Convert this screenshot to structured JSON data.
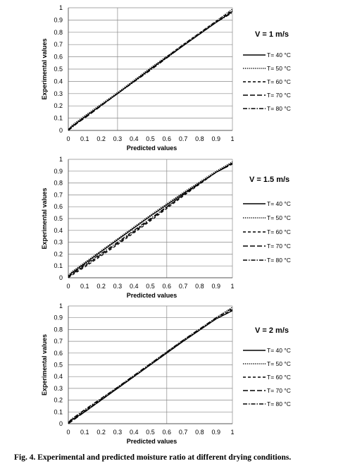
{
  "caption": "Fig. 4. Experimental and predicted moisture ratio at different drying conditions.",
  "chart_data": [
    {
      "type": "line",
      "condition_label": "V = 1 m/s",
      "xlabel": "Predicted values",
      "ylabel": "Experimental values",
      "xlim": [
        0,
        1
      ],
      "ylim": [
        0,
        1
      ],
      "xticks": [
        "0",
        "0.1",
        "0.2",
        "0.3",
        "0.4",
        "0.5",
        "0.6",
        "0.7",
        "0.8",
        "0.9",
        "1"
      ],
      "yticks": [
        "0",
        "0.1",
        "0.2",
        "0.3",
        "0.4",
        "0.5",
        "0.6",
        "0.7",
        "0.8",
        "0.9",
        "1"
      ],
      "grid": "horizontal",
      "vline_x": 0.3,
      "legend_position": "right",
      "series": [
        {
          "name": "T= 40 °C",
          "dash": "solid",
          "points": [
            [
              0,
              0.0
            ],
            [
              0.02,
              0.03
            ],
            [
              0.1,
              0.11
            ],
            [
              0.3,
              0.3
            ],
            [
              0.5,
              0.5
            ],
            [
              0.7,
              0.69
            ],
            [
              0.9,
              0.88
            ],
            [
              1.0,
              0.97
            ]
          ]
        },
        {
          "name": "T= 50 °C",
          "dash": "dotted",
          "points": [
            [
              0,
              0.0
            ],
            [
              0.02,
              0.04
            ],
            [
              0.1,
              0.12
            ],
            [
              0.3,
              0.31
            ],
            [
              0.5,
              0.51
            ],
            [
              0.7,
              0.7
            ],
            [
              0.9,
              0.89
            ],
            [
              1.0,
              0.99
            ]
          ]
        },
        {
          "name": "T= 60 °C",
          "dash": "dashed",
          "points": [
            [
              0,
              0.01
            ],
            [
              0.02,
              0.03
            ],
            [
              0.1,
              0.11
            ],
            [
              0.3,
              0.3
            ],
            [
              0.5,
              0.5
            ],
            [
              0.7,
              0.7
            ],
            [
              0.9,
              0.89
            ],
            [
              1.0,
              0.98
            ]
          ]
        },
        {
          "name": "T= 70 °C",
          "dash": "longdash",
          "points": [
            [
              0,
              0.0
            ],
            [
              0.02,
              0.03
            ],
            [
              0.1,
              0.1
            ],
            [
              0.3,
              0.3
            ],
            [
              0.5,
              0.5
            ],
            [
              0.7,
              0.69
            ],
            [
              0.9,
              0.88
            ],
            [
              1.0,
              0.97
            ]
          ]
        },
        {
          "name": "T= 80 °C",
          "dash": "dashdot",
          "points": [
            [
              0,
              0.0
            ],
            [
              0.02,
              0.02
            ],
            [
              0.1,
              0.11
            ],
            [
              0.3,
              0.3
            ],
            [
              0.5,
              0.49
            ],
            [
              0.7,
              0.69
            ],
            [
              0.9,
              0.88
            ],
            [
              1.0,
              0.96
            ]
          ]
        }
      ]
    },
    {
      "type": "line",
      "condition_label": "V = 1.5 m/s",
      "xlabel": "Predicted values",
      "ylabel": "Experimental values",
      "xlim": [
        0,
        1
      ],
      "ylim": [
        0,
        1
      ],
      "xticks": [
        "0",
        "0.1",
        "0.2",
        "0.3",
        "0.4",
        "0.5",
        "0.6",
        "0.7",
        "0.8",
        "0.9",
        "1"
      ],
      "yticks": [
        "0",
        "0.1",
        "0.2",
        "0.3",
        "0.4",
        "0.5",
        "0.6",
        "0.7",
        "0.8",
        "0.9",
        "1"
      ],
      "grid": "horizontal",
      "vline_x": 0.6,
      "legend_position": "right",
      "series": [
        {
          "name": "T= 40 °C",
          "dash": "solid",
          "points": [
            [
              0,
              0.01
            ],
            [
              0.02,
              0.04
            ],
            [
              0.1,
              0.12
            ],
            [
              0.3,
              0.32
            ],
            [
              0.5,
              0.52
            ],
            [
              0.7,
              0.71
            ],
            [
              0.9,
              0.89
            ],
            [
              1.0,
              0.97
            ]
          ]
        },
        {
          "name": "T= 50 °C",
          "dash": "dotted",
          "points": [
            [
              0,
              0.02
            ],
            [
              0.02,
              0.05
            ],
            [
              0.1,
              0.13
            ],
            [
              0.3,
              0.33
            ],
            [
              0.5,
              0.53
            ],
            [
              0.7,
              0.72
            ],
            [
              0.9,
              0.9
            ],
            [
              1.0,
              0.98
            ]
          ]
        },
        {
          "name": "T= 60 °C",
          "dash": "dashed",
          "points": [
            [
              0,
              0.0
            ],
            [
              0.02,
              0.02
            ],
            [
              0.1,
              0.09
            ],
            [
              0.3,
              0.28
            ],
            [
              0.5,
              0.48
            ],
            [
              0.7,
              0.69
            ],
            [
              0.9,
              0.89
            ],
            [
              1.0,
              0.96
            ]
          ]
        },
        {
          "name": "T= 70 °C",
          "dash": "longdash",
          "points": [
            [
              0,
              0.0
            ],
            [
              0.02,
              0.03
            ],
            [
              0.1,
              0.1
            ],
            [
              0.3,
              0.29
            ],
            [
              0.5,
              0.49
            ],
            [
              0.7,
              0.7
            ],
            [
              0.9,
              0.89
            ],
            [
              1.0,
              0.96
            ]
          ]
        },
        {
          "name": "T= 80 °C",
          "dash": "dashdot",
          "points": [
            [
              0,
              0.01
            ],
            [
              0.02,
              0.03
            ],
            [
              0.1,
              0.11
            ],
            [
              0.3,
              0.3
            ],
            [
              0.5,
              0.5
            ],
            [
              0.7,
              0.7
            ],
            [
              0.9,
              0.89
            ],
            [
              1.0,
              0.97
            ]
          ]
        }
      ]
    },
    {
      "type": "line",
      "condition_label": "V = 2 m/s",
      "xlabel": "Predicted values",
      "ylabel": "Experimental values",
      "xlim": [
        0,
        1
      ],
      "ylim": [
        0,
        1
      ],
      "xticks": [
        "0",
        "0.1",
        "0.2",
        "0.3",
        "0.4",
        "0.5",
        "0.6",
        "0.7",
        "0.8",
        "0.9",
        "1"
      ],
      "yticks": [
        "0",
        "0.1",
        "0.2",
        "0.3",
        "0.4",
        "0.5",
        "0.6",
        "0.7",
        "0.8",
        "0.9",
        "1"
      ],
      "grid": "horizontal",
      "vline_x": 0.6,
      "legend_position": "right",
      "series": [
        {
          "name": "T= 40 °C",
          "dash": "solid",
          "points": [
            [
              0,
              0.0
            ],
            [
              0.02,
              0.03
            ],
            [
              0.1,
              0.1
            ],
            [
              0.3,
              0.3
            ],
            [
              0.5,
              0.5
            ],
            [
              0.7,
              0.7
            ],
            [
              0.9,
              0.89
            ],
            [
              1.0,
              0.96
            ]
          ]
        },
        {
          "name": "T= 50 °C",
          "dash": "dotted",
          "points": [
            [
              0,
              0.01
            ],
            [
              0.02,
              0.04
            ],
            [
              0.1,
              0.11
            ],
            [
              0.3,
              0.31
            ],
            [
              0.5,
              0.51
            ],
            [
              0.7,
              0.71
            ],
            [
              0.9,
              0.9
            ],
            [
              1.0,
              0.99
            ]
          ]
        },
        {
          "name": "T= 60 °C",
          "dash": "dashed",
          "points": [
            [
              0,
              0.0
            ],
            [
              0.02,
              0.03
            ],
            [
              0.1,
              0.11
            ],
            [
              0.3,
              0.3
            ],
            [
              0.5,
              0.5
            ],
            [
              0.7,
              0.7
            ],
            [
              0.9,
              0.89
            ],
            [
              1.0,
              0.97
            ]
          ]
        },
        {
          "name": "T= 70 °C",
          "dash": "longdash",
          "points": [
            [
              0,
              0.0
            ],
            [
              0.02,
              0.02
            ],
            [
              0.1,
              0.1
            ],
            [
              0.3,
              0.3
            ],
            [
              0.5,
              0.5
            ],
            [
              0.7,
              0.7
            ],
            [
              0.9,
              0.89
            ],
            [
              1.0,
              0.96
            ]
          ]
        },
        {
          "name": "T= 80 °C",
          "dash": "dashdot",
          "points": [
            [
              0,
              0.01
            ],
            [
              0.02,
              0.04
            ],
            [
              0.1,
              0.12
            ],
            [
              0.3,
              0.31
            ],
            [
              0.5,
              0.51
            ],
            [
              0.7,
              0.71
            ],
            [
              0.9,
              0.9
            ],
            [
              1.0,
              0.98
            ]
          ]
        }
      ]
    }
  ]
}
